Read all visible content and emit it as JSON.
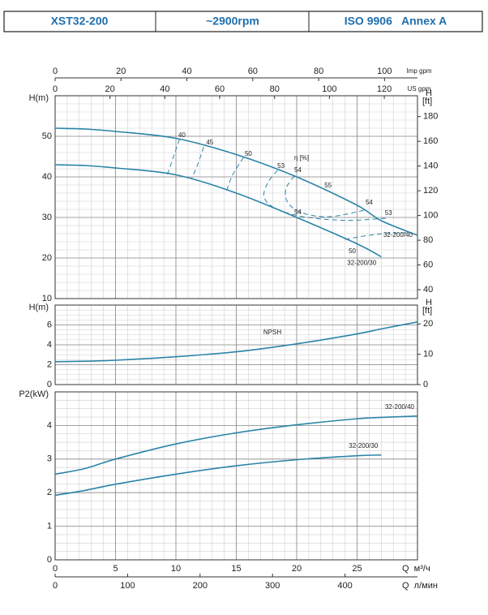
{
  "header": {
    "model": "XST32-200",
    "speed": "~2900rpm",
    "standard": "ISO 9906   Annex A"
  },
  "chart_data": [
    {
      "type": "line",
      "ylabel": "H(m)",
      "y2label": "H",
      "y2unit": "[ft]",
      "x": [
        0,
        2.5,
        5,
        10,
        15,
        20,
        25,
        27,
        30
      ],
      "xlim": [
        0,
        30
      ],
      "xticks": [
        0,
        5,
        10,
        15,
        20,
        25
      ],
      "x_minor": 1,
      "ylim": [
        10,
        60
      ],
      "yticks": [
        10,
        20,
        30,
        40,
        50
      ],
      "y_minor": 2,
      "y2lim": [
        32.81,
        196.85
      ],
      "y2ticks": [
        40,
        60,
        80,
        100,
        120,
        140,
        160,
        180
      ],
      "color": "#2a84a8",
      "grid": true,
      "series": [
        {
          "name": "32-200/40",
          "values": [
            52,
            51.8,
            51.2,
            49.5,
            45.5,
            40,
            33,
            29.2,
            25.6
          ]
        },
        {
          "name": "32-200/30",
          "values": [
            43,
            42.8,
            42.2,
            40.5,
            36,
            30,
            23.5,
            20.3,
            null
          ]
        }
      ],
      "top_axes": [
        {
          "label": "Imp gpm",
          "lim": [
            0,
            110
          ],
          "ticks": [
            0,
            20,
            40,
            60,
            80,
            100
          ]
        },
        {
          "label": "US gpm",
          "lim": [
            0,
            132.1
          ],
          "ticks": [
            0,
            20,
            40,
            60,
            80,
            100,
            120
          ]
        }
      ],
      "efficiency_label": "η [%]",
      "efficiency_contours": [
        {
          "q": [
            10.3,
            9.8,
            9.3
          ],
          "h": [
            49.3,
            45,
            40.6
          ]
        },
        {
          "q": [
            12.3,
            11.8,
            11.3
          ],
          "h": [
            47.4,
            43,
            39.6
          ]
        },
        {
          "q": [
            15.6,
            14.7,
            14.2
          ],
          "h": [
            44.8,
            40.5,
            36.6
          ]
        },
        {
          "q": [
            18.4,
            17.6,
            17.3,
            18.2,
            20.5,
            24,
            27.5
          ],
          "h": [
            41.6,
            38.5,
            35,
            32.3,
            30.2,
            29.3,
            29.8
          ]
        },
        {
          "q": [
            19.8,
            19.1,
            19.3,
            20.6,
            22.8,
            25.6
          ],
          "h": [
            40.2,
            37,
            33.5,
            31,
            30.2,
            31.8
          ]
        },
        {
          "q": [
            24,
            26.5,
            29.5
          ],
          "h": [
            24.6,
            25.8,
            26.3
          ]
        }
      ],
      "efficiency_labels": [
        {
          "eta": 40,
          "q": 10.5,
          "h": 50.2
        },
        {
          "eta": 45,
          "q": 12.8,
          "h": 48.4
        },
        {
          "eta": 50,
          "q": 16,
          "h": 45.6
        },
        {
          "eta": 53,
          "q": 18.7,
          "h": 42.6
        },
        {
          "eta": 54,
          "q": 20.1,
          "h": 41.6
        },
        {
          "eta": 55,
          "q": 22.6,
          "h": 37.8
        },
        {
          "eta": 54,
          "q": 26,
          "h": 33.6
        },
        {
          "eta": 53,
          "q": 27.6,
          "h": 31
        },
        {
          "eta": 54,
          "q": 20.1,
          "h": 31.2
        },
        {
          "eta": 50,
          "q": 24.6,
          "h": 21.6
        }
      ]
    },
    {
      "type": "line",
      "ylabel": "H(m)",
      "y2label": "H",
      "y2unit": "[ft]",
      "x": [
        0,
        2.5,
        5,
        10,
        15,
        20,
        25,
        27,
        30
      ],
      "xlim": [
        0,
        30
      ],
      "xticks": [
        0,
        5,
        10,
        15,
        20,
        25
      ],
      "x_minor": 1,
      "ylim": [
        0,
        8
      ],
      "yticks": [
        0,
        2,
        4,
        6
      ],
      "y_minor": 0.5,
      "y2lim": [
        0,
        26.25
      ],
      "y2ticks": [
        0,
        10,
        20
      ],
      "color": "#2a84a8",
      "grid": true,
      "series": [
        {
          "name": "NPSH",
          "values": [
            2.3,
            2.35,
            2.45,
            2.8,
            3.3,
            4.1,
            5.1,
            5.6,
            6.3
          ]
        }
      ]
    },
    {
      "type": "line",
      "ylabel": "P2(kW)",
      "x": [
        0,
        2.5,
        5,
        10,
        15,
        20,
        25,
        27,
        30
      ],
      "xlim": [
        0,
        30
      ],
      "xticks": [
        0,
        5,
        10,
        15,
        20,
        25
      ],
      "x_minor": 1,
      "ylim": [
        0,
        5
      ],
      "yticks": [
        0,
        1,
        2,
        3,
        4
      ],
      "y_minor": 0.25,
      "color": "#2a84a8",
      "grid": true,
      "xlabel": "Q  м³/ч",
      "series": [
        {
          "name": "32-200/40",
          "values": [
            2.55,
            2.72,
            3.0,
            3.45,
            3.78,
            4.02,
            4.2,
            4.24,
            4.28
          ]
        },
        {
          "name": "32-200/30",
          "values": [
            1.92,
            2.07,
            2.25,
            2.55,
            2.8,
            2.98,
            3.1,
            3.12,
            null
          ]
        }
      ],
      "bottom_axis": {
        "label": "Q  л/мин",
        "lim": [
          0,
          500
        ],
        "ticks": [
          0,
          100,
          200,
          300,
          400
        ]
      }
    }
  ]
}
